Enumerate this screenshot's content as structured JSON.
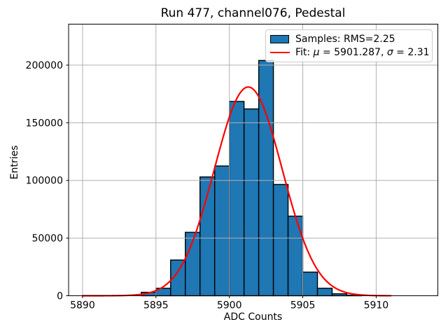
{
  "window": {
    "background": "#ffffff"
  },
  "chart_data": {
    "type": "bar",
    "subtype": "histogram-with-gaussian-fit",
    "title": "Run 477, channel076, Pedestal",
    "xlabel": "ADC Counts",
    "ylabel": "Entries",
    "xlim": [
      5889.05,
      5914.2
    ],
    "ylim": [
      0,
      235500
    ],
    "xticks": [
      5890,
      5895,
      5900,
      5905,
      5910
    ],
    "yticks": [
      0,
      50000,
      100000,
      150000,
      200000
    ],
    "grid": true,
    "legend_position": "upper right",
    "colors": {
      "bar_fill": "#1f77b4",
      "bar_edge": "#000000",
      "fit_line": "#ff0000",
      "grid": "#b0b0b0",
      "spine": "#000000",
      "text": "#000000"
    },
    "histogram": {
      "series_name": "Samples",
      "rms": 2.25,
      "bin_width": 1,
      "bin_left_edges": [
        5894,
        5895,
        5896,
        5897,
        5898,
        5899,
        5900,
        5901,
        5902,
        5903,
        5904,
        5905,
        5906,
        5907,
        5908
      ],
      "counts": [
        3000,
        6500,
        31000,
        55000,
        103000,
        112500,
        168500,
        162000,
        204000,
        96500,
        69000,
        20500,
        6500,
        1700,
        500
      ]
    },
    "fit": {
      "series_name": "Fit",
      "shape": "gaussian",
      "mu": 5901.287,
      "sigma": 2.31,
      "amplitude": 181000,
      "x_start": 5890,
      "x_end": 5911
    },
    "legend": {
      "entries": [
        {
          "swatch": "box",
          "label": "Samples: RMS=2.25"
        },
        {
          "swatch": "line",
          "label": "Fit: μ = 5901.287, σ = 2.31",
          "label_parts": [
            {
              "text": "Fit: "
            },
            {
              "text": "μ",
              "italic": true
            },
            {
              "text": " = 5901.287, "
            },
            {
              "text": "σ",
              "italic": true
            },
            {
              "text": " = 2.31"
            }
          ]
        }
      ]
    }
  }
}
